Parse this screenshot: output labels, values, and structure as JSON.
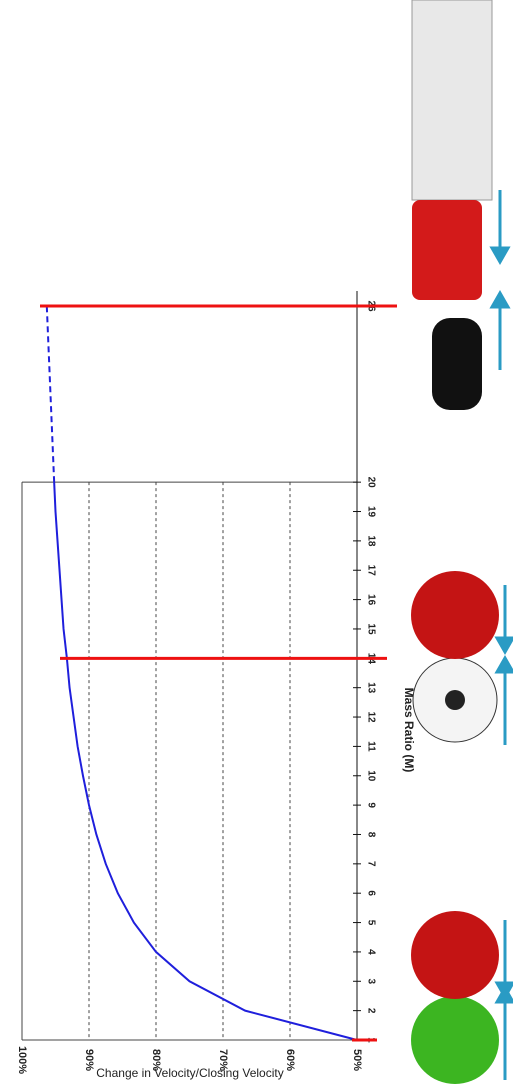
{
  "chart_data": {
    "type": "line",
    "xlabel": "Mass Ratio (M)",
    "ylabel": "Change in Velocity/Closing Velocity",
    "xlim": [
      1,
      26
    ],
    "xticks": [
      1,
      2,
      3,
      4,
      5,
      6,
      7,
      8,
      9,
      10,
      11,
      12,
      13,
      14,
      15,
      16,
      17,
      18,
      19,
      20,
      26
    ],
    "ylim": [
      50,
      100
    ],
    "yticks": [
      {
        "value": 50,
        "label": "50%"
      },
      {
        "value": 60,
        "label": "60%"
      },
      {
        "value": 70,
        "label": "70%"
      },
      {
        "value": 80,
        "label": "80%"
      },
      {
        "value": 90,
        "label": "90%"
      },
      {
        "value": 100,
        "label": "100%"
      }
    ],
    "grid": true,
    "series": [
      {
        "color": "#1f1fdc",
        "style": "solid",
        "x": [
          1,
          2,
          3,
          4,
          5,
          6,
          7,
          8,
          9,
          10,
          11,
          12,
          13,
          14,
          15,
          16,
          17,
          18,
          19,
          20
        ],
        "values": [
          50,
          66.7,
          75,
          80,
          83.3,
          85.7,
          87.5,
          88.9,
          90,
          90.9,
          91.7,
          92.3,
          92.9,
          93.3,
          93.8,
          94.1,
          94.4,
          94.7,
          95,
          95.2
        ]
      },
      {
        "color": "#1f1fdc",
        "style": "dashed",
        "x": [
          20,
          26
        ],
        "values": [
          95.2,
          96.3
        ]
      }
    ],
    "reference_lines": {
      "color": "#ee1111",
      "x": [
        1,
        14,
        26
      ]
    }
  }
}
